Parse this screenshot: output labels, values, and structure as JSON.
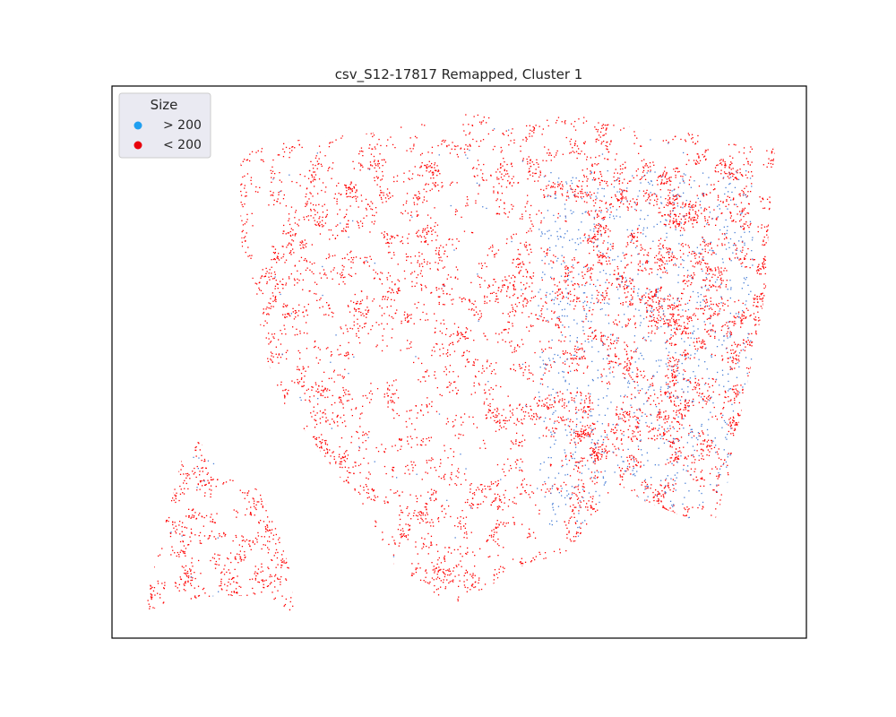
{
  "chart_data": {
    "type": "scatter",
    "title": "csv_S12-17817 Remapped, Cluster 1",
    "xlabel": "",
    "ylabel": "",
    "axes_visible": false,
    "grid": false,
    "legend": {
      "title": "Size",
      "placement": "top-left",
      "entries": [
        {
          "label": "> 200",
          "color": "#1f9ff0"
        },
        {
          "label": "< 200",
          "color": "#e8000b"
        }
      ]
    },
    "series": [
      {
        "name": "> 200",
        "color": "#4a7fd6",
        "density": "sparse, concentrated in right/lower-right region"
      },
      {
        "name": "< 200",
        "color": "#ff0000",
        "density": "dense, covering whole tissue area"
      }
    ]
  }
}
